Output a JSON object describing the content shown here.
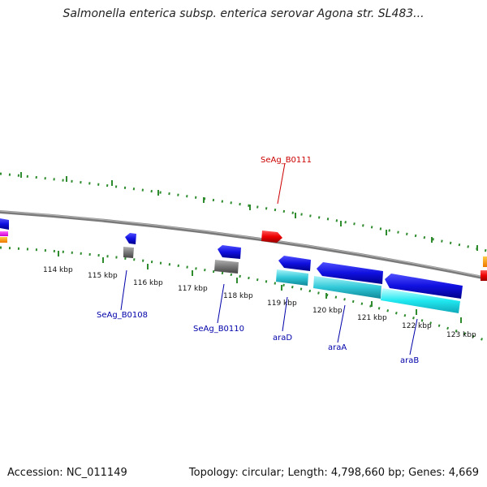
{
  "title": "Salmonella enterica subsp. enterica serovar Agona str. SL483...",
  "footer": {
    "accession": "Accession: NC_011149",
    "topology": "Topology: circular; Length: 4,798,660 bp; Genes: 4,669"
  },
  "ticks": [
    {
      "label": "114 kbp"
    },
    {
      "label": "115 kbp"
    },
    {
      "label": "116 kbp"
    },
    {
      "label": "117 kbp"
    },
    {
      "label": "118 kbp"
    },
    {
      "label": "119 kbp"
    },
    {
      "label": "120 kbp"
    },
    {
      "label": "121 kbp"
    },
    {
      "label": "122 kbp"
    },
    {
      "label": "123 kbp"
    }
  ],
  "genes": [
    {
      "name": "SeAg_B0108",
      "color": "#0000aa"
    },
    {
      "name": "SeAg_B0110",
      "color": "#0000aa"
    },
    {
      "name": "araD",
      "color": "#0000aa"
    },
    {
      "name": "araA",
      "color": "#0000aa"
    },
    {
      "name": "araB",
      "color": "#0000aa"
    },
    {
      "name": "SeAg_B0111",
      "color": "#cc0000"
    }
  ],
  "colors": {
    "backbone": "#8a8a8a",
    "tick_marks": "#2e8b2e",
    "gene_forward": "#ee1111",
    "gene_reverse": "#1a1aee",
    "rna": "#2ab8c8",
    "pseudo": "#777777"
  }
}
